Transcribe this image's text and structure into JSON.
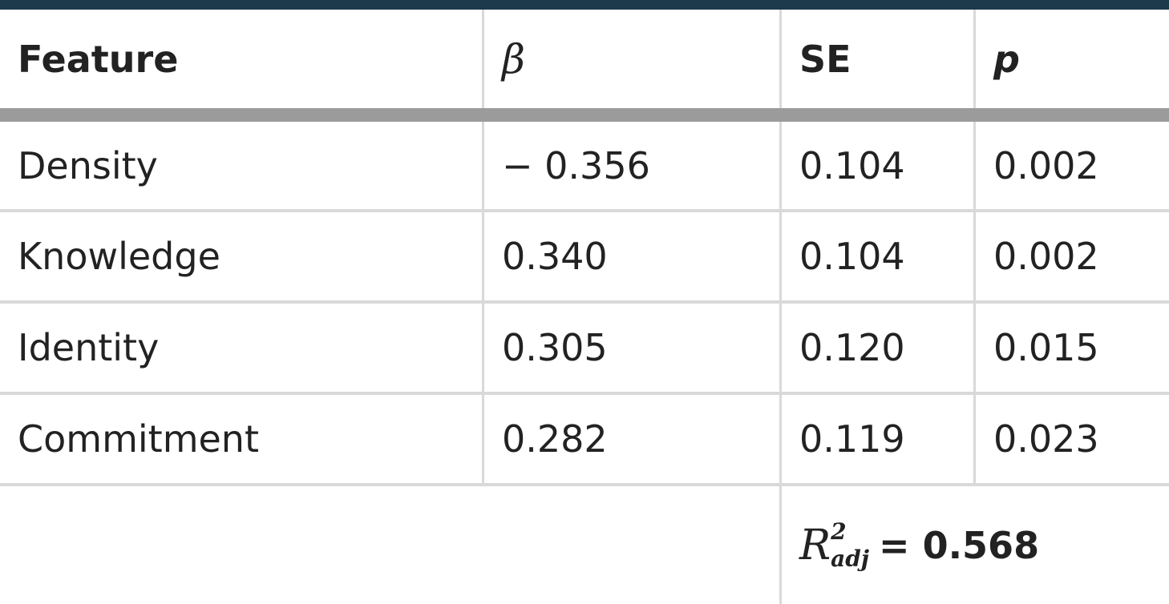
{
  "table": {
    "header": [
      "Feature",
      "β",
      "SE",
      "p"
    ],
    "rows": [
      [
        "Density",
        "− 0.356",
        "0.104",
        "0.002"
      ],
      [
        "Knowledge",
        "0.340",
        "0.104",
        "0.002"
      ],
      [
        "Identity",
        "0.305",
        "0.120",
        "0.015"
      ],
      [
        "Commitment",
        "0.282",
        "0.119",
        "0.023"
      ]
    ],
    "footer": {
      "symbol": "R",
      "superscript": "2",
      "subscript": "adj",
      "value": "= 0.568"
    }
  }
}
